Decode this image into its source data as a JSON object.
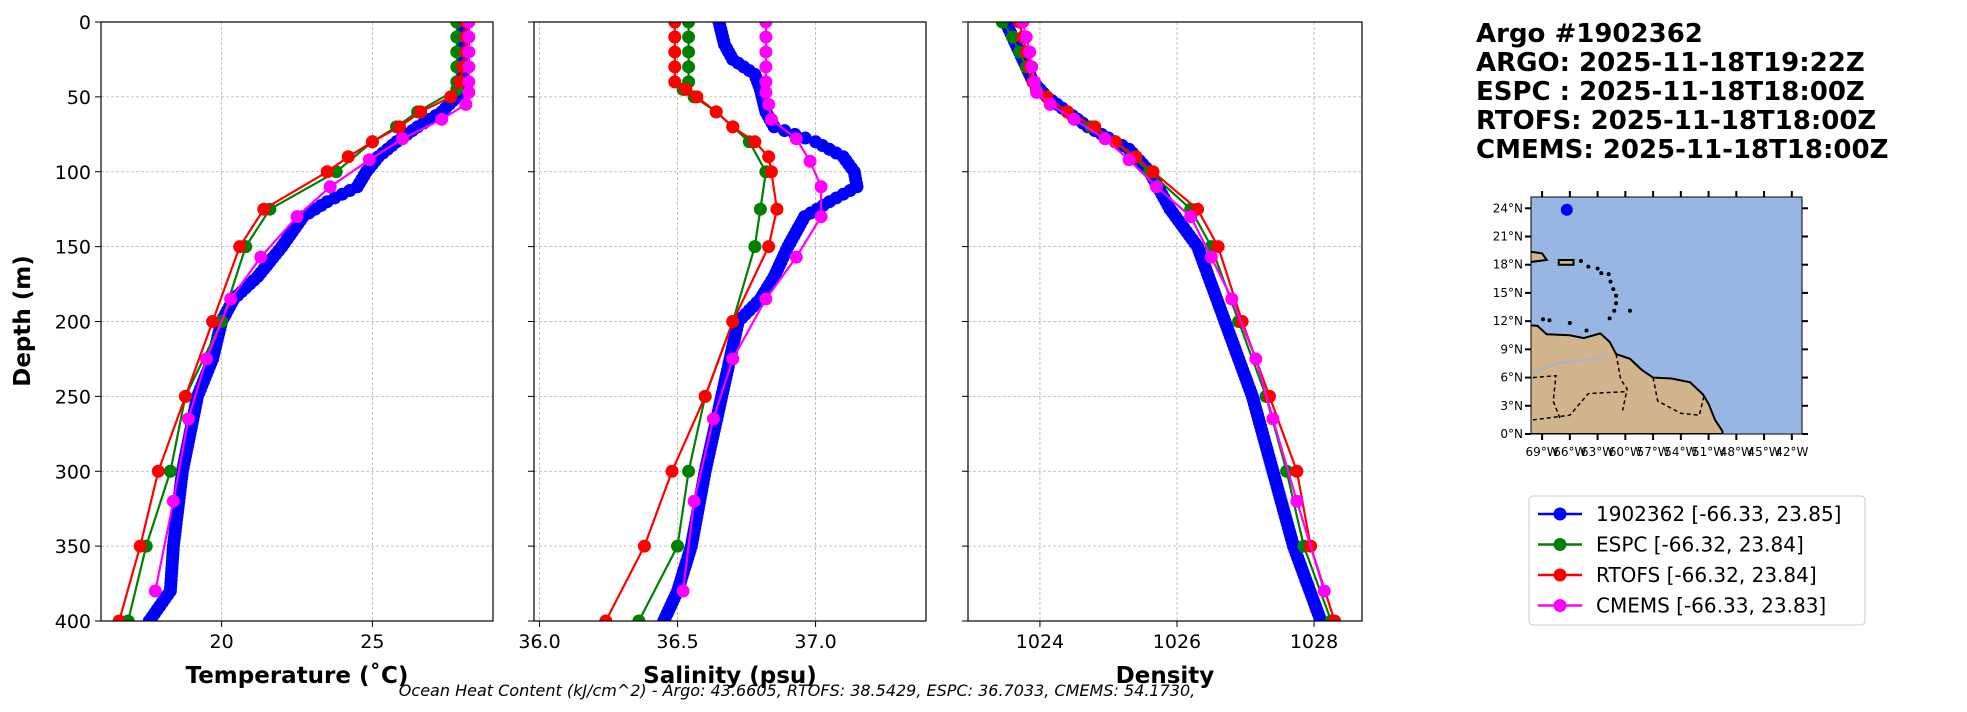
{
  "title_lines": [
    "Argo #1902362",
    "ARGO: 2025-11-18T19:22Z",
    "ESPC : 2025-11-18T18:00Z",
    "RTOFS: 2025-11-18T18:00Z",
    "CMEMS: 2025-11-18T18:00Z"
  ],
  "footer": "Ocean Heat Content (kJ/cm^2) - Argo: 43.6605,  RTOFS: 38.5429,  ESPC: 36.7033,  CMEMS: 54.1730,",
  "colors": {
    "argo": "#0000ff",
    "espc": "#008000",
    "rtofs": "#ff0000",
    "cmems": "#ff00ff",
    "ocean": "#97b6e1",
    "land": "#d2b48c"
  },
  "legend": [
    {
      "key": "argo",
      "label": "1902362 [-66.33, 23.85]"
    },
    {
      "key": "espc",
      "label": "ESPC [-66.32, 23.84]"
    },
    {
      "key": "rtofs",
      "label": "RTOFS [-66.32, 23.84]"
    },
    {
      "key": "cmems",
      "label": "CMEMS [-66.33, 23.83]"
    }
  ],
  "map": {
    "lat_ticks": [
      "0°N",
      "3°N",
      "6°N",
      "9°N",
      "12°N",
      "15°N",
      "18°N",
      "21°N",
      "24°N"
    ],
    "lon_ticks": [
      "69°W",
      "66°W",
      "63°W",
      "60°W",
      "57°W",
      "54°W",
      "51°W",
      "48°W",
      "45°W",
      "42°W"
    ],
    "float_position": {
      "lon": -66.33,
      "lat": 23.85
    }
  },
  "chart_data": [
    {
      "type": "line",
      "xlabel": "Temperature (˚C)",
      "ylabel": "Depth (m)",
      "xlim": [
        16,
        29
      ],
      "ylim": [
        400,
        0
      ],
      "xticks": [
        20,
        25
      ],
      "xtick_labels": [
        "20",
        "25"
      ],
      "yticks": [
        0,
        50,
        100,
        150,
        200,
        250,
        300,
        350,
        400
      ],
      "ytick_labels": [
        "0",
        "50",
        "100",
        "150",
        "200",
        "250",
        "300",
        "350",
        "400"
      ],
      "grid": true,
      "series": [
        {
          "name": "argo",
          "depth": [
            0,
            45,
            50,
            60,
            70,
            80,
            90,
            100,
            110,
            120,
            130,
            150,
            170,
            185,
            200,
            225,
            250,
            300,
            350,
            380,
            400
          ],
          "values": [
            28.0,
            28.0,
            27.8,
            27.3,
            26.5,
            25.8,
            25.2,
            24.8,
            24.5,
            23.5,
            22.7,
            22.0,
            21.2,
            20.4,
            20.0,
            19.7,
            19.2,
            18.7,
            18.4,
            18.3,
            17.6
          ]
        },
        {
          "name": "espc",
          "depth": [
            0,
            10,
            20,
            30,
            40,
            45,
            60,
            70,
            80,
            100,
            125,
            150,
            200,
            250,
            300,
            350,
            400
          ],
          "values": [
            27.8,
            27.8,
            27.8,
            27.8,
            27.8,
            27.8,
            26.5,
            25.8,
            25.0,
            23.8,
            21.6,
            20.8,
            20.0,
            18.8,
            18.3,
            17.5,
            16.9
          ]
        },
        {
          "name": "rtofs",
          "depth": [
            0,
            10,
            20,
            30,
            40,
            50,
            60,
            70,
            80,
            90,
            100,
            125,
            150,
            200,
            250,
            300,
            350,
            400
          ],
          "values": [
            28.1,
            28.1,
            28.1,
            28.0,
            27.9,
            27.6,
            26.6,
            25.9,
            25.0,
            24.2,
            23.5,
            21.4,
            20.6,
            19.7,
            18.8,
            17.9,
            17.3,
            16.6
          ]
        },
        {
          "name": "cmems",
          "depth": [
            0,
            10,
            20,
            30,
            40,
            47,
            55,
            65,
            78,
            92,
            110,
            130,
            157,
            185,
            225,
            265,
            320,
            380
          ],
          "values": [
            28.2,
            28.2,
            28.2,
            28.2,
            28.2,
            28.2,
            28.1,
            27.3,
            26.0,
            24.9,
            23.6,
            22.5,
            21.3,
            20.3,
            19.5,
            18.9,
            18.4,
            17.8
          ]
        }
      ]
    },
    {
      "type": "line",
      "xlabel": "Salinity (psu)",
      "ylabel": "",
      "xlim": [
        35.98,
        37.4
      ],
      "ylim": [
        400,
        0
      ],
      "xticks": [
        36.0,
        36.5,
        37.0
      ],
      "xtick_labels": [
        "36.0",
        "36.5",
        "37.0"
      ],
      "yticks": [
        0,
        50,
        100,
        150,
        200,
        250,
        300,
        350,
        400
      ],
      "ytick_labels": [],
      "grid": true,
      "series": [
        {
          "name": "argo",
          "depth": [
            0,
            15,
            25,
            35,
            45,
            60,
            70,
            80,
            90,
            100,
            110,
            120,
            130,
            150,
            170,
            185,
            200,
            250,
            300,
            350,
            380,
            400
          ],
          "values": [
            36.65,
            36.67,
            36.7,
            36.78,
            36.8,
            36.82,
            36.85,
            37.0,
            37.1,
            37.14,
            37.15,
            37.05,
            36.96,
            36.9,
            36.85,
            36.8,
            36.72,
            36.66,
            36.6,
            36.55,
            36.5,
            36.45
          ]
        },
        {
          "name": "espc",
          "depth": [
            0,
            10,
            20,
            30,
            40,
            45,
            50,
            60,
            70,
            80,
            100,
            125,
            150,
            200,
            250,
            300,
            350,
            400
          ],
          "values": [
            36.54,
            36.54,
            36.54,
            36.54,
            36.54,
            36.52,
            36.56,
            36.64,
            36.7,
            36.76,
            36.82,
            36.8,
            36.78,
            36.7,
            36.6,
            36.54,
            36.5,
            36.36
          ]
        },
        {
          "name": "rtofs",
          "depth": [
            0,
            10,
            20,
            30,
            40,
            45,
            50,
            60,
            70,
            80,
            90,
            100,
            125,
            150,
            200,
            250,
            300,
            350,
            400
          ],
          "values": [
            36.49,
            36.49,
            36.49,
            36.49,
            36.49,
            36.53,
            36.57,
            36.64,
            36.7,
            36.78,
            36.83,
            36.84,
            36.86,
            36.83,
            36.7,
            36.6,
            36.48,
            36.38,
            36.24
          ]
        },
        {
          "name": "cmems",
          "depth": [
            0,
            10,
            20,
            30,
            40,
            47,
            55,
            65,
            78,
            93,
            110,
            130,
            157,
            185,
            225,
            265,
            320,
            380
          ],
          "values": [
            36.82,
            36.82,
            36.82,
            36.82,
            36.82,
            36.82,
            36.83,
            36.84,
            36.93,
            36.98,
            37.02,
            37.02,
            36.93,
            36.82,
            36.7,
            36.63,
            36.56,
            36.52
          ]
        }
      ]
    },
    {
      "type": "line",
      "xlabel": "Density",
      "ylabel": "",
      "xlim": [
        1022.95,
        1028.7
      ],
      "ylim": [
        400,
        0
      ],
      "xticks": [
        1024,
        1026,
        1028
      ],
      "xtick_labels": [
        "1024",
        "1026",
        "1028"
      ],
      "yticks": [
        0,
        50,
        100,
        150,
        200,
        250,
        300,
        350,
        400
      ],
      "ytick_labels": [],
      "grid": true,
      "series": [
        {
          "name": "argo",
          "depth": [
            0,
            20,
            40,
            50,
            70,
            85,
            100,
            125,
            150,
            200,
            250,
            300,
            350,
            400
          ],
          "values": [
            1023.5,
            1023.7,
            1023.9,
            1024.1,
            1024.7,
            1025.3,
            1025.6,
            1025.9,
            1026.3,
            1026.7,
            1027.1,
            1027.4,
            1027.7,
            1028.1
          ]
        },
        {
          "name": "espc",
          "depth": [
            0,
            10,
            20,
            30,
            40,
            45,
            60,
            70,
            80,
            100,
            125,
            150,
            200,
            250,
            300,
            350,
            400
          ],
          "values": [
            1023.45,
            1023.6,
            1023.7,
            1023.8,
            1023.9,
            1023.95,
            1024.4,
            1024.75,
            1025.1,
            1025.6,
            1026.2,
            1026.5,
            1026.9,
            1027.3,
            1027.6,
            1027.85,
            1028.25
          ]
        },
        {
          "name": "rtofs",
          "depth": [
            0,
            10,
            20,
            30,
            40,
            50,
            60,
            70,
            80,
            90,
            100,
            125,
            150,
            200,
            250,
            300,
            350,
            400
          ],
          "values": [
            1023.7,
            1023.75,
            1023.8,
            1023.85,
            1023.9,
            1024.1,
            1024.4,
            1024.8,
            1025.1,
            1025.4,
            1025.65,
            1026.3,
            1026.6,
            1026.95,
            1027.35,
            1027.75,
            1027.95,
            1028.3
          ]
        },
        {
          "name": "cmems",
          "depth": [
            0,
            10,
            20,
            30,
            40,
            47,
            55,
            65,
            78,
            92,
            110,
            130,
            157,
            185,
            225,
            265,
            320,
            380
          ],
          "values": [
            1023.75,
            1023.8,
            1023.85,
            1023.88,
            1023.92,
            1023.95,
            1024.15,
            1024.5,
            1024.95,
            1025.3,
            1025.7,
            1026.2,
            1026.5,
            1026.8,
            1027.15,
            1027.4,
            1027.75,
            1028.15
          ]
        }
      ]
    }
  ]
}
